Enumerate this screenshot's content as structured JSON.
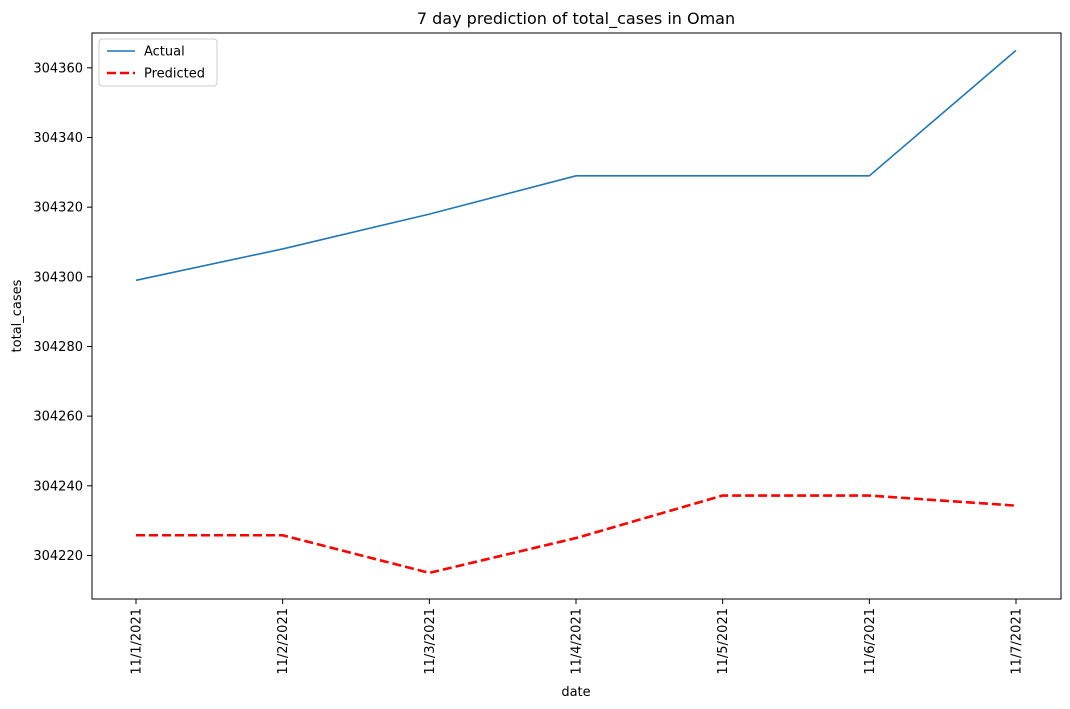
{
  "chart_data": {
    "type": "line",
    "title": "7 day prediction of total_cases in Oman",
    "xlabel": "date",
    "ylabel": "total_cases",
    "categories": [
      "11/1/2021",
      "11/2/2021",
      "11/3/2021",
      "11/4/2021",
      "11/5/2021",
      "11/6/2021",
      "11/7/2021"
    ],
    "ylim": [
      304207.5,
      304370
    ],
    "yticks": [
      304220,
      304240,
      304260,
      304280,
      304300,
      304320,
      304340,
      304360
    ],
    "grid": false,
    "legend_position": "top-left",
    "series": [
      {
        "name": "Actual",
        "values": [
          304299,
          304308,
          304318,
          304329,
          304329,
          304329,
          304365
        ],
        "color": "#1f77b4",
        "style": "solid"
      },
      {
        "name": "Predicted",
        "values": [
          304225.8,
          304225.8,
          304215,
          304225,
          304237.2,
          304237.2,
          304234.3
        ],
        "color": "#ff0000",
        "style": "dashed"
      }
    ]
  }
}
